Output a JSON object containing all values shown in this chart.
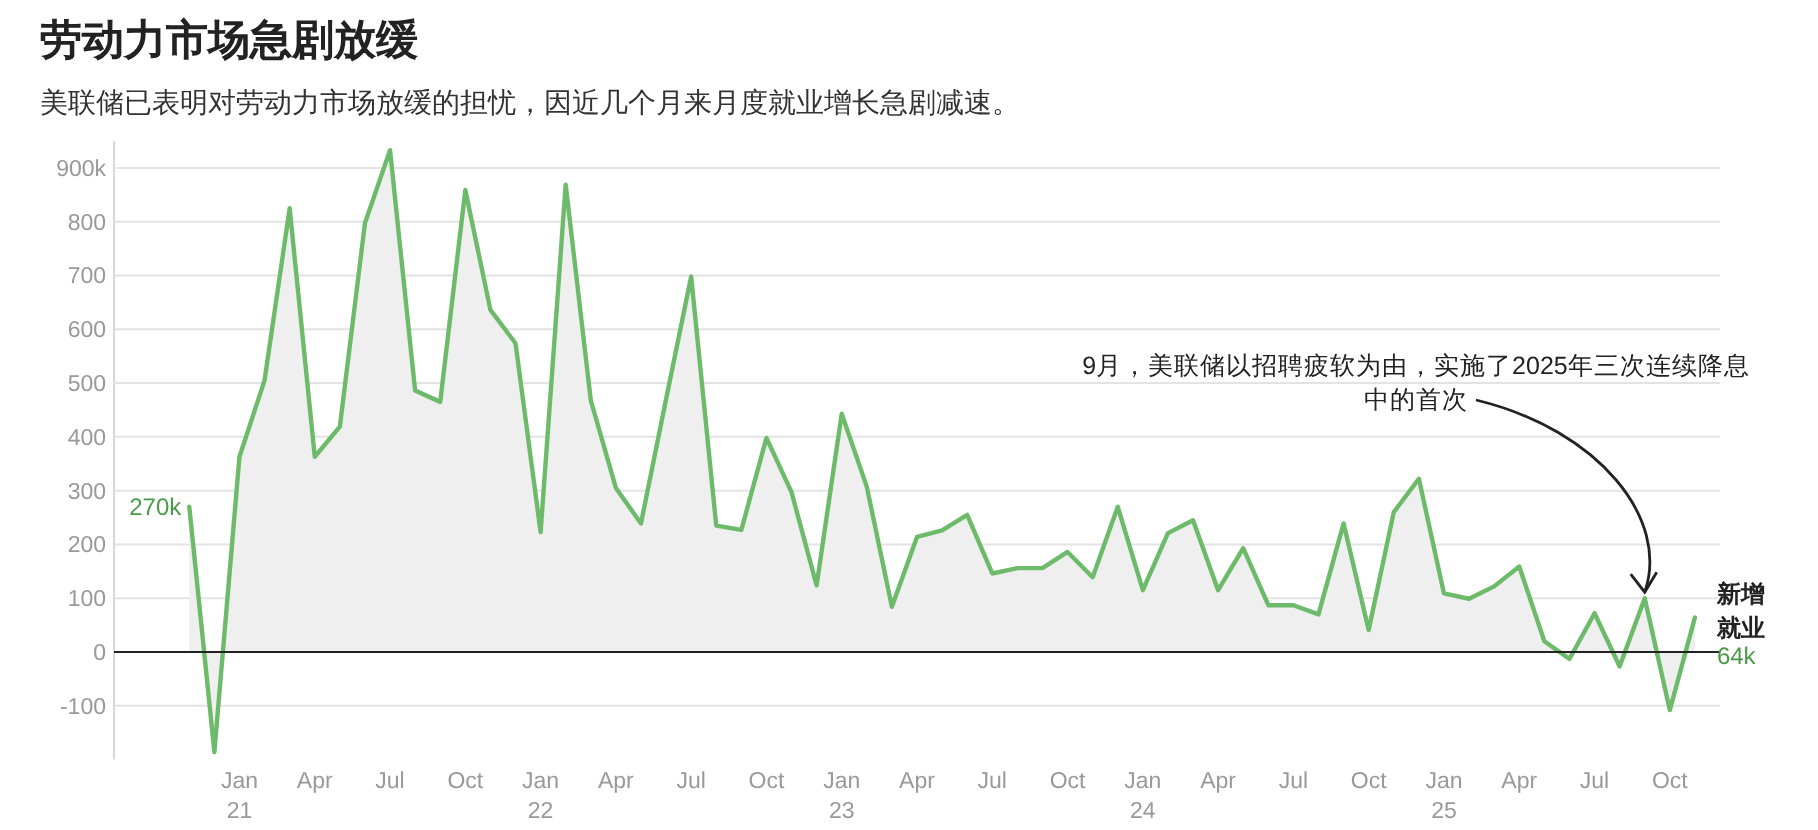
{
  "chart_data": {
    "type": "area",
    "title": "劳动力市场急剧放缓",
    "subtitle": "美联储已表明对劳动力市场放缓的担忧，因近几个月来月度就业增长急剧减速。",
    "x": [
      "2020-11",
      "2020-12",
      "2021-01",
      "2021-02",
      "2021-03",
      "2021-04",
      "2021-05",
      "2021-06",
      "2021-07",
      "2021-08",
      "2021-09",
      "2021-10",
      "2021-11",
      "2021-12",
      "2022-01",
      "2022-02",
      "2022-03",
      "2022-04",
      "2022-05",
      "2022-06",
      "2022-07",
      "2022-08",
      "2022-09",
      "2022-10",
      "2022-11",
      "2022-12",
      "2023-01",
      "2023-02",
      "2023-03",
      "2023-04",
      "2023-05",
      "2023-06",
      "2023-07",
      "2023-08",
      "2023-09",
      "2023-10",
      "2023-11",
      "2023-12",
      "2024-01",
      "2024-02",
      "2024-03",
      "2024-04",
      "2024-05",
      "2024-06",
      "2024-07",
      "2024-08",
      "2024-09",
      "2024-10",
      "2024-11",
      "2024-12",
      "2025-01",
      "2025-02",
      "2025-03",
      "2025-04",
      "2025-05",
      "2025-06",
      "2025-07",
      "2025-08",
      "2025-09",
      "2025-10",
      "2025-11"
    ],
    "series": [
      {
        "name": "新增就业",
        "color": "#6dbb6a",
        "values": [
          270,
          -186,
          363,
          505,
          825,
          363,
          419,
          797,
          933,
          486,
          465,
          859,
          636,
          574,
          223,
          869,
          468,
          305,
          239,
          470,
          698,
          235,
          227,
          398,
          297,
          124,
          443,
          307,
          84,
          214,
          226,
          255,
          146,
          156,
          156,
          186,
          139,
          270,
          115,
          221,
          245,
          115,
          193,
          87,
          87,
          70,
          239,
          41,
          260,
          322,
          109,
          99,
          122,
          159,
          20,
          -13,
          72,
          -27,
          100,
          -108,
          64
        ],
        "value_labels": [
          "270k",
          null,
          null,
          null,
          null,
          null,
          null,
          null,
          null,
          null,
          null,
          null,
          null,
          null,
          null,
          null,
          null,
          null,
          null,
          null,
          null,
          null,
          null,
          null,
          null,
          null,
          null,
          null,
          null,
          null,
          null,
          null,
          null,
          null,
          null,
          null,
          null,
          null,
          null,
          null,
          null,
          null,
          null,
          null,
          null,
          null,
          null,
          null,
          null,
          null,
          null,
          null,
          null,
          null,
          null,
          null,
          null,
          null,
          null,
          null,
          "64k"
        ]
      }
    ],
    "xlim": [
      "2020-08",
      "2025-12"
    ],
    "xticks": [
      {
        "value": "2021-01",
        "label": "Jan 21"
      },
      {
        "value": "2021-04",
        "label": "Apr"
      },
      {
        "value": "2021-07",
        "label": "Jul"
      },
      {
        "value": "2021-10",
        "label": "Oct"
      },
      {
        "value": "2022-01",
        "label": "Jan 22"
      },
      {
        "value": "2022-04",
        "label": "Apr"
      },
      {
        "value": "2022-07",
        "label": "Jul"
      },
      {
        "value": "2022-10",
        "label": "Oct"
      },
      {
        "value": "2023-01",
        "label": "Jan 23"
      },
      {
        "value": "2023-04",
        "label": "Apr"
      },
      {
        "value": "2023-07",
        "label": "Jul"
      },
      {
        "value": "2023-10",
        "label": "Oct"
      },
      {
        "value": "2024-01",
        "label": "Jan 24"
      },
      {
        "value": "2024-04",
        "label": "Apr"
      },
      {
        "value": "2024-07",
        "label": "Jul"
      },
      {
        "value": "2024-10",
        "label": "Oct"
      },
      {
        "value": "2025-01",
        "label": "Jan 25"
      },
      {
        "value": "2025-04",
        "label": "Apr"
      },
      {
        "value": "2025-07",
        "label": "Jul"
      },
      {
        "value": "2025-10",
        "label": "Oct"
      }
    ],
    "yticks": [
      -100,
      0,
      100,
      200,
      300,
      400,
      500,
      600,
      700,
      800,
      {
        "value": 900,
        "label": "900k"
      }
    ],
    "ylim": [
      -200,
      950
    ],
    "grid": "y",
    "legend": false,
    "marker": "none",
    "line_style": "solid",
    "annotations": [
      {
        "text": "9月，美联储以招聘疲软为由，实施了2025年三次连续降息中的首次",
        "x": "2025-09",
        "y": 100
      }
    ]
  }
}
